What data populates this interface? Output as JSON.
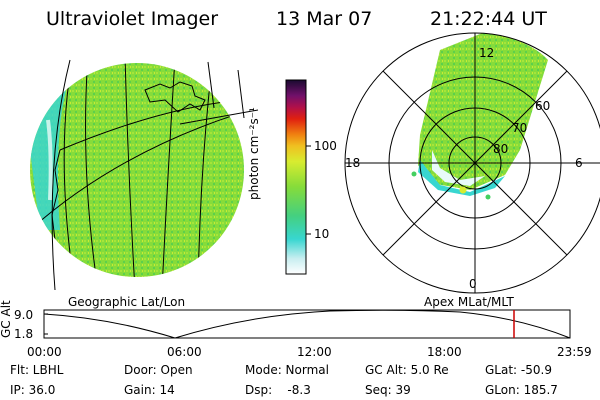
{
  "header": {
    "title": "Ultraviolet Imager",
    "date": "13 Mar 07",
    "time": "21:22:44 UT"
  },
  "colorbar": {
    "label": "photon cm⁻²s⁻¹",
    "ticks": [
      "100",
      "10"
    ],
    "scale": "log"
  },
  "polar": {
    "mlt_labels": {
      "top": "12",
      "left": "18",
      "right": "6",
      "bottom": "0"
    },
    "lat_labels": [
      "60",
      "70",
      "80"
    ]
  },
  "panels": {
    "left_label": "Geographic Lat/Lon",
    "right_label": "Apex MLat/MLT"
  },
  "altitude_plot": {
    "ylabel": "GC Alt",
    "yticks": [
      "9.0",
      "1.8"
    ],
    "xticks": [
      "00:00",
      "06:00",
      "12:00",
      "18:00",
      "23:59"
    ],
    "marker_color": "#cc0000"
  },
  "info": {
    "row1": {
      "filter": "Flt: LBHL",
      "door": "Door: Open",
      "mode": "Mode: Normal",
      "gcalt": "GC Alt: 5.0 Re",
      "glat": "GLat: -50.9"
    },
    "row2": {
      "ip": "IP: 36.0",
      "gain": "Gain: 14",
      "dsp": "Dsp:    -8.3",
      "seq": "Seq: 39",
      "glon": "GLon: 185.7"
    }
  },
  "colors": {
    "earth_fill": "#86dc3a",
    "cyan": "#38d6d0",
    "background": "#ffffff"
  }
}
